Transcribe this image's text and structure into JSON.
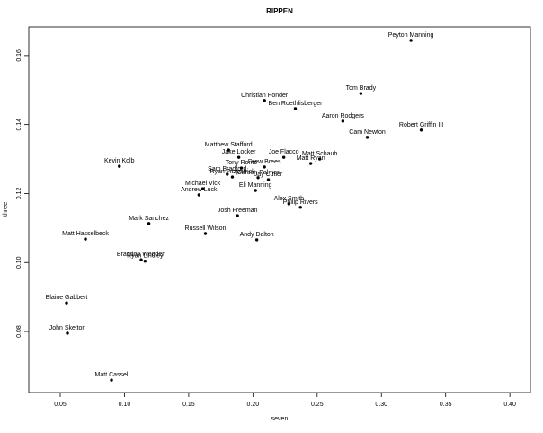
{
  "chart_data": {
    "type": "scatter",
    "title": "RIPPEN",
    "x_label": "seven",
    "y_label": "three",
    "labels": [
      "Peyton Manning",
      "Tom Brady",
      "Christian Ponder",
      "Ben Roethlisberger",
      "Aaron Rodgers",
      "Robert Griffin III",
      "Cam Newton",
      "Matthew Stafford",
      "Jake Locker",
      "Joe Flacco",
      "Matt Schaub",
      "Matt Ryan",
      "Kevin Kolb",
      "Tony Romo",
      "Drew Brees",
      "Sam Bradford",
      "Ryan Fitzpatrick",
      "Carson Palmer",
      "Jay Cutler",
      "Michael Vick",
      "Andrew Luck",
      "Eli Manning",
      "Alex Smith",
      "Philip Rivers",
      "Josh Freeman",
      "Mark Sanchez",
      "Russell Wilson",
      "Andy Dalton",
      "Matt Hasselbeck",
      "Brandon Weeden",
      "Ryan Lindley",
      "Blaine Gabbert",
      "John Skelton",
      "Matt Cassel"
    ],
    "x": [
      0.323,
      0.284,
      0.209,
      0.233,
      0.27,
      0.331,
      0.289,
      0.181,
      0.189,
      0.224,
      0.252,
      0.245,
      0.096,
      0.191,
      0.209,
      0.18,
      0.184,
      0.204,
      0.212,
      0.161,
      0.158,
      0.202,
      0.228,
      0.237,
      0.188,
      0.119,
      0.163,
      0.203,
      0.0696,
      0.113,
      0.116,
      0.0549,
      0.0556,
      0.0899
    ],
    "y": [
      0.1644,
      0.149,
      0.147,
      0.1446,
      0.141,
      0.1384,
      0.1363,
      0.1326,
      0.1305,
      0.1305,
      0.13,
      0.1287,
      0.1279,
      0.1274,
      0.1277,
      0.1256,
      0.1248,
      0.1246,
      0.124,
      0.1214,
      0.1196,
      0.1209,
      0.117,
      0.116,
      0.1136,
      0.1113,
      0.1084,
      0.1066,
      0.1068,
      0.1008,
      0.1004,
      0.0883,
      0.0795,
      0.0659
    ],
    "color": "#000000",
    "xlim": [
      0.0255,
      0.416
    ],
    "ylim": [
      0.0623,
      0.1683
    ],
    "xticks": [
      {
        "value": 0.05,
        "label": "0.05"
      },
      {
        "value": 0.1,
        "label": "0.10"
      },
      {
        "value": 0.15,
        "label": "0.15"
      },
      {
        "value": 0.2,
        "label": "0.20"
      },
      {
        "value": 0.25,
        "label": "0.25"
      },
      {
        "value": 0.3,
        "label": "0.30"
      },
      {
        "value": 0.35,
        "label": "0.35"
      },
      {
        "value": 0.4,
        "label": "0.40"
      }
    ],
    "yticks": [
      {
        "value": 0.08,
        "label": "0.08"
      },
      {
        "value": 0.1,
        "label": "0.10"
      },
      {
        "value": 0.12,
        "label": "0.12"
      },
      {
        "value": 0.14,
        "label": "0.14"
      },
      {
        "value": 0.16,
        "label": "0.16"
      }
    ]
  }
}
